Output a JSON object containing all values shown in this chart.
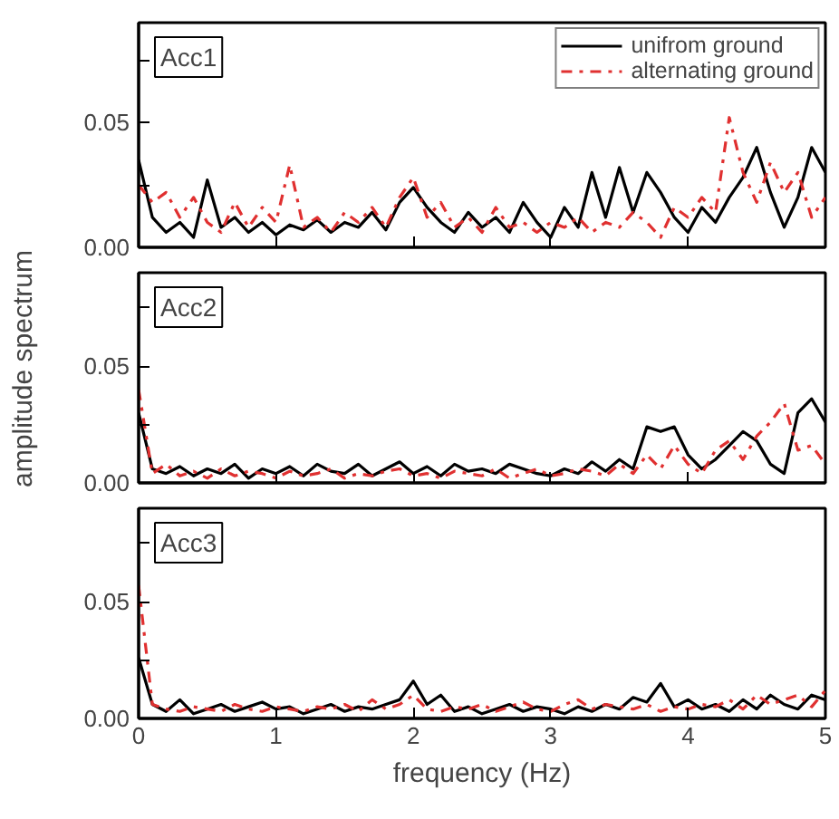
{
  "chart_data": [
    {
      "type": "line",
      "annotations": [
        "Acc1"
      ],
      "legend": "top right",
      "tick_labels": "y",
      "xlim": [
        0,
        5
      ],
      "xticks": [
        0,
        1,
        2,
        3,
        4,
        5
      ],
      "ylim": [
        0,
        0.09
      ],
      "yticks": [
        {
          "value": 0,
          "label": "0.00"
        },
        {
          "value": 0.025,
          "label": null
        },
        {
          "value": 0.05,
          "label": "0.05"
        },
        {
          "value": 0.075,
          "label": null
        }
      ],
      "x": [
        0,
        0.1,
        0.2,
        0.3,
        0.4,
        0.5,
        0.6,
        0.7,
        0.8,
        0.9,
        1.0,
        1.1,
        1.2,
        1.3,
        1.4,
        1.5,
        1.6,
        1.7,
        1.8,
        1.9,
        2.0,
        2.1,
        2.2,
        2.3,
        2.4,
        2.5,
        2.6,
        2.7,
        2.8,
        2.9,
        3.0,
        3.1,
        3.2,
        3.3,
        3.4,
        3.5,
        3.6,
        3.7,
        3.8,
        3.9,
        4.0,
        4.1,
        4.2,
        4.3,
        4.4,
        4.5,
        4.6,
        4.7,
        4.8,
        4.9,
        5.0
      ],
      "series": [
        {
          "name": "unifrom ground",
          "color": "#000000",
          "line_style": "solid",
          "values": [
            0.035,
            0.012,
            0.006,
            0.01,
            0.004,
            0.027,
            0.008,
            0.012,
            0.006,
            0.01,
            0.005,
            0.009,
            0.007,
            0.011,
            0.006,
            0.01,
            0.008,
            0.014,
            0.007,
            0.018,
            0.024,
            0.016,
            0.01,
            0.006,
            0.014,
            0.008,
            0.012,
            0.006,
            0.018,
            0.01,
            0.004,
            0.016,
            0.008,
            0.03,
            0.012,
            0.032,
            0.014,
            0.03,
            0.022,
            0.012,
            0.006,
            0.016,
            0.01,
            0.02,
            0.028,
            0.04,
            0.022,
            0.008,
            0.02,
            0.04,
            0.03
          ]
        },
        {
          "name": "alternating ground",
          "color": "#e03030",
          "line_style": "dashdot",
          "values": [
            0.025,
            0.018,
            0.022,
            0.012,
            0.02,
            0.01,
            0.006,
            0.018,
            0.008,
            0.016,
            0.01,
            0.033,
            0.008,
            0.012,
            0.006,
            0.014,
            0.01,
            0.016,
            0.008,
            0.02,
            0.028,
            0.012,
            0.018,
            0.008,
            0.012,
            0.006,
            0.016,
            0.008,
            0.01,
            0.006,
            0.01,
            0.008,
            0.012,
            0.006,
            0.01,
            0.008,
            0.014,
            0.01,
            0.004,
            0.016,
            0.012,
            0.02,
            0.014,
            0.052,
            0.03,
            0.018,
            0.034,
            0.022,
            0.03,
            0.012,
            0.02
          ]
        }
      ]
    },
    {
      "type": "line",
      "annotations": [
        "Acc2"
      ],
      "ylabel": "amplitude spectrum",
      "tick_labels": "y",
      "xlim": [
        0,
        5
      ],
      "xticks": [
        0,
        1,
        2,
        3,
        4,
        5
      ],
      "ylim": [
        0,
        0.09
      ],
      "yticks": [
        {
          "value": 0,
          "label": "0.00"
        },
        {
          "value": 0.025,
          "label": null
        },
        {
          "value": 0.05,
          "label": "0.05"
        },
        {
          "value": 0.075,
          "label": null
        }
      ],
      "x": [
        0,
        0.1,
        0.2,
        0.3,
        0.4,
        0.5,
        0.6,
        0.7,
        0.8,
        0.9,
        1.0,
        1.1,
        1.2,
        1.3,
        1.4,
        1.5,
        1.6,
        1.7,
        1.8,
        1.9,
        2.0,
        2.1,
        2.2,
        2.3,
        2.4,
        2.5,
        2.6,
        2.7,
        2.8,
        2.9,
        3.0,
        3.1,
        3.2,
        3.3,
        3.4,
        3.5,
        3.6,
        3.7,
        3.8,
        3.9,
        4.0,
        4.1,
        4.2,
        4.3,
        4.4,
        4.5,
        4.6,
        4.7,
        4.8,
        4.9,
        5.0
      ],
      "series": [
        {
          "color": "#000000",
          "line_style": "solid",
          "values": [
            0.03,
            0.006,
            0.004,
            0.007,
            0.003,
            0.006,
            0.004,
            0.008,
            0.002,
            0.006,
            0.004,
            0.007,
            0.003,
            0.008,
            0.005,
            0.004,
            0.008,
            0.003,
            0.006,
            0.009,
            0.004,
            0.007,
            0.003,
            0.008,
            0.005,
            0.006,
            0.004,
            0.008,
            0.006,
            0.004,
            0.003,
            0.006,
            0.004,
            0.009,
            0.005,
            0.01,
            0.006,
            0.024,
            0.022,
            0.024,
            0.012,
            0.006,
            0.01,
            0.016,
            0.022,
            0.018,
            0.008,
            0.004,
            0.03,
            0.036,
            0.026
          ]
        },
        {
          "color": "#e03030",
          "line_style": "dashdot",
          "values": [
            0.04,
            0.004,
            0.008,
            0.003,
            0.005,
            0.002,
            0.006,
            0.003,
            0.005,
            0.004,
            0.002,
            0.005,
            0.003,
            0.004,
            0.006,
            0.002,
            0.004,
            0.003,
            0.005,
            0.006,
            0.003,
            0.004,
            0.002,
            0.005,
            0.004,
            0.003,
            0.006,
            0.002,
            0.004,
            0.006,
            0.003,
            0.004,
            0.006,
            0.005,
            0.003,
            0.008,
            0.004,
            0.012,
            0.006,
            0.016,
            0.008,
            0.004,
            0.014,
            0.018,
            0.01,
            0.02,
            0.026,
            0.034,
            0.014,
            0.016,
            0.008
          ]
        }
      ]
    },
    {
      "type": "line",
      "annotations": [
        "Acc3"
      ],
      "xlabel": "frequency (Hz)",
      "xlim": [
        0,
        5
      ],
      "xticks": [
        0,
        1,
        2,
        3,
        4,
        5
      ],
      "ylim": [
        0,
        0.09
      ],
      "yticks": [
        {
          "value": 0,
          "label": "0.00"
        },
        {
          "value": 0.025,
          "label": null
        },
        {
          "value": 0.05,
          "label": "0.05"
        },
        {
          "value": 0.075,
          "label": null
        }
      ],
      "x": [
        0,
        0.1,
        0.2,
        0.3,
        0.4,
        0.5,
        0.6,
        0.7,
        0.8,
        0.9,
        1.0,
        1.1,
        1.2,
        1.3,
        1.4,
        1.5,
        1.6,
        1.7,
        1.8,
        1.9,
        2.0,
        2.1,
        2.2,
        2.3,
        2.4,
        2.5,
        2.6,
        2.7,
        2.8,
        2.9,
        3.0,
        3.1,
        3.2,
        3.3,
        3.4,
        3.5,
        3.6,
        3.7,
        3.8,
        3.9,
        4.0,
        4.1,
        4.2,
        4.3,
        4.4,
        4.5,
        4.6,
        4.7,
        4.8,
        4.9,
        5.0
      ],
      "series": [
        {
          "color": "#000000",
          "line_style": "solid",
          "values": [
            0.026,
            0.006,
            0.003,
            0.008,
            0.002,
            0.004,
            0.006,
            0.003,
            0.005,
            0.007,
            0.004,
            0.005,
            0.002,
            0.004,
            0.006,
            0.003,
            0.005,
            0.004,
            0.006,
            0.008,
            0.016,
            0.006,
            0.01,
            0.003,
            0.005,
            0.002,
            0.004,
            0.006,
            0.003,
            0.005,
            0.004,
            0.002,
            0.005,
            0.003,
            0.006,
            0.004,
            0.009,
            0.007,
            0.015,
            0.005,
            0.008,
            0.004,
            0.006,
            0.003,
            0.008,
            0.004,
            0.01,
            0.006,
            0.004,
            0.01,
            0.008
          ]
        },
        {
          "color": "#e03030",
          "line_style": "dashdot",
          "values": [
            0.057,
            0.006,
            0.004,
            0.003,
            0.005,
            0.004,
            0.003,
            0.006,
            0.004,
            0.003,
            0.005,
            0.004,
            0.003,
            0.005,
            0.004,
            0.006,
            0.003,
            0.008,
            0.004,
            0.006,
            0.01,
            0.004,
            0.003,
            0.005,
            0.004,
            0.006,
            0.003,
            0.005,
            0.007,
            0.004,
            0.003,
            0.006,
            0.008,
            0.004,
            0.006,
            0.005,
            0.004,
            0.006,
            0.003,
            0.005,
            0.004,
            0.006,
            0.005,
            0.008,
            0.004,
            0.01,
            0.006,
            0.008,
            0.01,
            0.005,
            0.012
          ]
        }
      ]
    }
  ]
}
